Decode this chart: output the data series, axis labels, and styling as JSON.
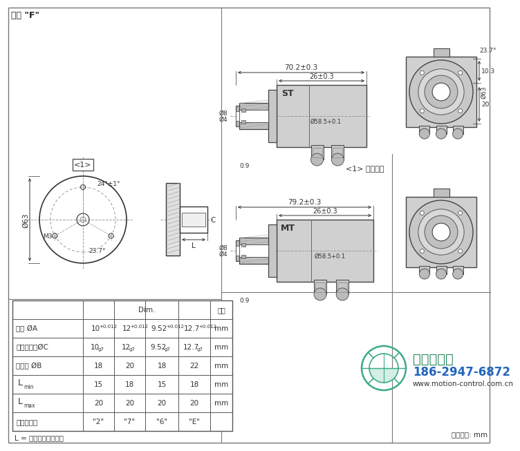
{
  "title": "盲轴 \"F\"",
  "background_color": "#ffffff",
  "drawing_color": "#555555",
  "dim_color": "#333333",
  "table_data": {
    "rows": [
      [
        "盲轴 ØA",
        "10+0.012",
        "12+0.012",
        "9.52+0.012",
        "12.7+0.012",
        "mm"
      ],
      [
        "匹配连接轴ØC",
        "10 g7",
        "12 g7",
        "9.52 g7",
        "12.7 g7",
        "mm"
      ],
      [
        "夹紧环 ØB",
        "18",
        "20",
        "18",
        "22",
        "mm"
      ],
      [
        "L_min",
        "15",
        "18",
        "15",
        "18",
        "mm"
      ],
      [
        "L_max",
        "20",
        "20",
        "20",
        "20",
        "mm"
      ],
      [
        "轴类型代码",
        "\"2\"",
        "\"7\"",
        "\"6\"",
        "\"E\"",
        ""
      ]
    ],
    "footer": "L = 匹配轴的深入长度",
    "unit_note": "尺寸单位: mm"
  },
  "annotation_1": "<1> 客户端面",
  "logo_text": "西安德伍拓",
  "phone": "186-2947-6872",
  "website": "www.motion-control.com.cn",
  "logo_color": "#3aaa8a",
  "phone_color": "#2266bb",
  "st_width": "70.2±0.3",
  "st_gap": "26±0.3",
  "mt_width": "79.2±0.3",
  "mt_gap": "26±0.3",
  "d8": "Ø8",
  "d4": "Ø4",
  "d58": "Ø58.5+0.1",
  "d09": "0.9",
  "right_dim_angle": "23.7°",
  "right_dim_h1": "10.3",
  "right_dim_h2": "20",
  "dim_phi63": "Ø63",
  "angle1": "24°±1°",
  "angle2": "23.7°",
  "m3": "M3"
}
